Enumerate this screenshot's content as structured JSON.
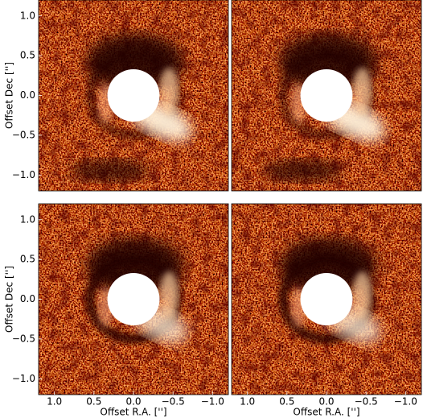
{
  "chart_data": [
    {
      "type": "image",
      "ylabel": "Offset Dec ['']",
      "xlim": [
        1.2,
        -1.2
      ],
      "ylim": [
        -1.2,
        1.2
      ],
      "yticks": [
        {
          "value": -1.0,
          "label": "−1.0"
        },
        {
          "value": -0.5,
          "label": "−0.5"
        },
        {
          "value": 0.0,
          "label": "0.0"
        },
        {
          "value": 0.5,
          "label": "0.5"
        },
        {
          "value": 1.0,
          "label": "1.0"
        }
      ]
    },
    {
      "type": "image",
      "xlim": [
        1.2,
        -1.2
      ],
      "ylim": [
        -1.2,
        1.2
      ]
    },
    {
      "type": "image",
      "xlabel": "Offset R.A. ['']",
      "ylabel": "Offset Dec ['']",
      "xlim": [
        1.2,
        -1.2
      ],
      "ylim": [
        -1.2,
        1.2
      ],
      "xticks": [
        {
          "value": 1.0,
          "label": "1.0"
        },
        {
          "value": 0.5,
          "label": "0.5"
        },
        {
          "value": 0.0,
          "label": "0.0"
        },
        {
          "value": -0.5,
          "label": "−0.5"
        },
        {
          "value": -1.0,
          "label": "−1.0"
        }
      ],
      "yticks": [
        {
          "value": -1.0,
          "label": "−1.0"
        },
        {
          "value": -0.5,
          "label": "−0.5"
        },
        {
          "value": 0.0,
          "label": "0.0"
        },
        {
          "value": 0.5,
          "label": "0.5"
        },
        {
          "value": 1.0,
          "label": "1.0"
        }
      ]
    },
    {
      "type": "image",
      "xlabel": "Offset R.A. ['']",
      "xlim": [
        1.2,
        -1.2
      ],
      "ylim": [
        -1.2,
        1.2
      ],
      "xticks": [
        {
          "value": 1.0,
          "label": "1.0"
        },
        {
          "value": 0.5,
          "label": "0.5"
        },
        {
          "value": 0.0,
          "label": "0.0"
        },
        {
          "value": -0.5,
          "label": "−0.5"
        },
        {
          "value": -1.0,
          "label": "−1.0"
        }
      ]
    }
  ]
}
